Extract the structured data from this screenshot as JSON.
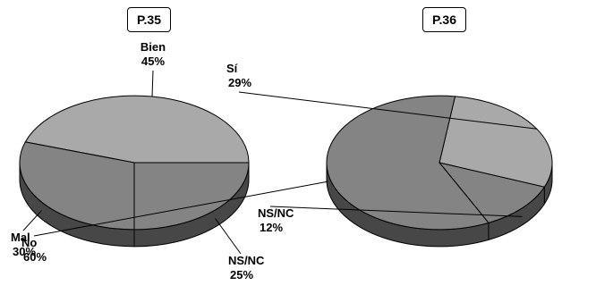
{
  "chart_data": [
    {
      "type": "pie",
      "title": "P.35",
      "labels": [
        "Bien",
        "NS/NC",
        "Mal"
      ],
      "values": [
        45,
        25,
        30
      ],
      "value_labels": [
        "45%",
        "25%",
        "30%"
      ],
      "style": "3d"
    },
    {
      "type": "pie",
      "title": "P.36",
      "labels": [
        "Sí",
        "NS/NC",
        "No"
      ],
      "values": [
        29,
        12,
        60
      ],
      "value_labels": [
        "29%",
        "12%",
        "60%"
      ],
      "style": "3d"
    }
  ],
  "colors": {
    "top_light": "#a9a9a9",
    "top_dark": "#848484",
    "side": "#474747",
    "outline": "#000000"
  }
}
